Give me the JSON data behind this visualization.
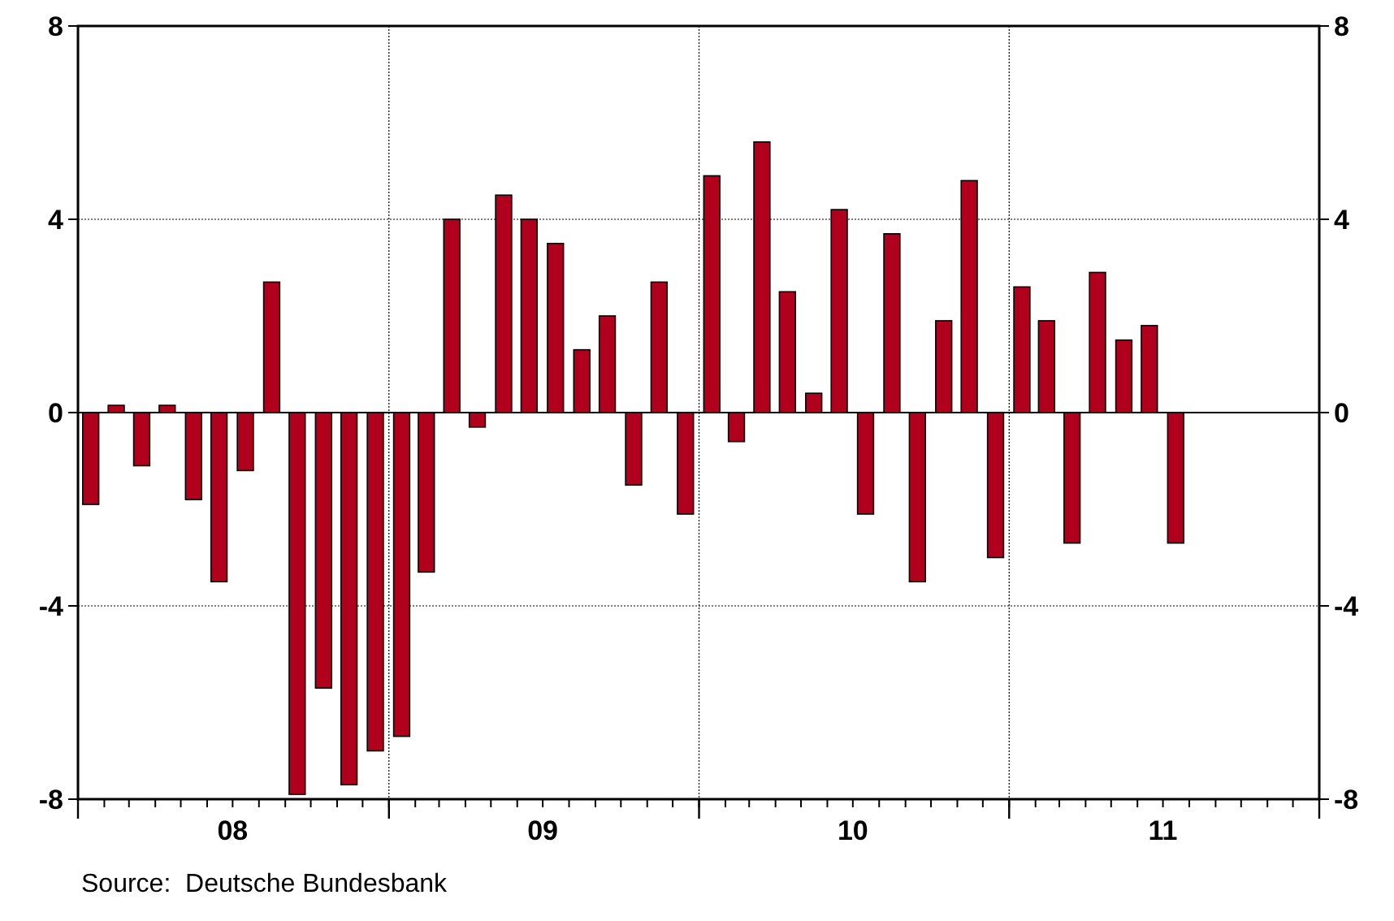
{
  "chart_data": {
    "type": "bar",
    "color": "#b0001e",
    "x": [
      "2008-01-16",
      "2008-02-15",
      "2008-03-16",
      "2008-04-15",
      "2008-05-16",
      "2008-06-15",
      "2008-07-16",
      "2008-08-16",
      "2008-09-15",
      "2008-10-16",
      "2008-11-15",
      "2008-12-16",
      "2009-01-16",
      "2009-02-14",
      "2009-03-16",
      "2009-04-15",
      "2009-05-16",
      "2009-06-15",
      "2009-07-16",
      "2009-08-16",
      "2009-09-15",
      "2009-10-16",
      "2009-11-15",
      "2009-12-16",
      "2010-01-16",
      "2010-02-14",
      "2010-03-16",
      "2010-04-15",
      "2010-05-16",
      "2010-06-15",
      "2010-07-16",
      "2010-08-16",
      "2010-09-15",
      "2010-10-16",
      "2010-11-15",
      "2010-12-16",
      "2011-01-16",
      "2011-02-14",
      "2011-03-16",
      "2011-04-15",
      "2011-05-16",
      "2011-06-15",
      "2011-07-16"
    ],
    "values": [
      -1.9,
      0.15,
      -1.1,
      0.15,
      -1.8,
      -3.5,
      -1.2,
      2.7,
      -7.9,
      -5.7,
      -7.7,
      -7.0,
      -6.7,
      -3.3,
      4.0,
      -0.3,
      4.5,
      4.0,
      3.5,
      1.3,
      2.0,
      -1.5,
      2.7,
      -2.1,
      4.9,
      -0.6,
      5.6,
      2.5,
      0.4,
      4.2,
      -2.1,
      3.7,
      -3.5,
      1.9,
      4.8,
      -3.0,
      2.6,
      1.9,
      -2.7,
      2.9,
      1.5,
      1.8,
      -2.7
    ],
    "xlim": [
      "2008-01",
      "2012-01"
    ],
    "xticks": [
      {
        "value": "2008-01",
        "label": null
      },
      {
        "value": "2008-07",
        "label": "08"
      },
      {
        "value": "2009-01",
        "label": null
      },
      {
        "value": "2009-07",
        "label": "09"
      },
      {
        "value": "2010-01",
        "label": null
      },
      {
        "value": "2010-07",
        "label": "10"
      },
      {
        "value": "2011-01",
        "label": null
      },
      {
        "value": "2011-07",
        "label": "11"
      },
      {
        "value": "2012-01",
        "label": null
      }
    ],
    "ylim": [
      -8,
      8
    ],
    "yticks": [
      -8,
      -4,
      0,
      4,
      8
    ],
    "y2lim": [
      -8,
      8
    ],
    "y2ticks": [
      -8,
      -4,
      0,
      4,
      8
    ],
    "grid": true,
    "annotations": [
      "Source:  Deutsche Bundesbank"
    ]
  }
}
